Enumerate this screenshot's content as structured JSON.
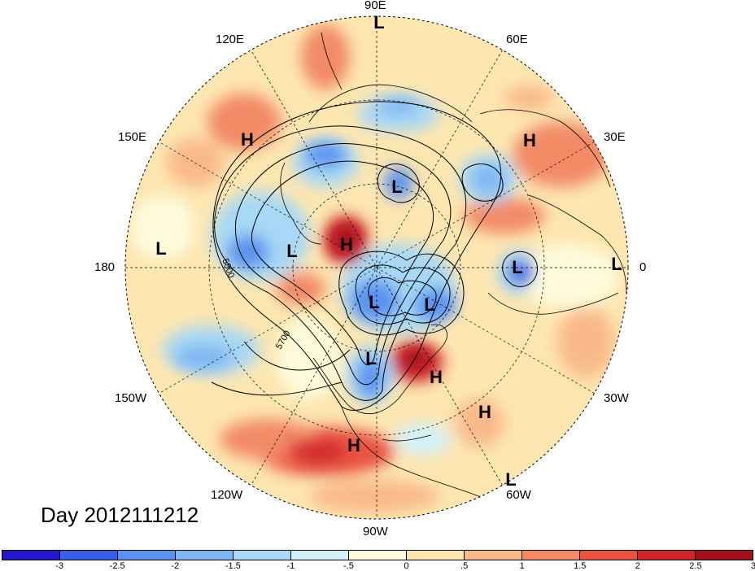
{
  "day_label": "Day 2012111212",
  "lon_labels": [
    {
      "id": "90e",
      "text": "90E"
    },
    {
      "id": "60e",
      "text": "60E"
    },
    {
      "id": "30e",
      "text": "30E"
    },
    {
      "id": "0",
      "text": "0"
    },
    {
      "id": "30w",
      "text": "30W"
    },
    {
      "id": "60w",
      "text": "60W"
    },
    {
      "id": "90w",
      "text": "90W"
    },
    {
      "id": "120w",
      "text": "120W"
    },
    {
      "id": "150w",
      "text": "150W"
    },
    {
      "id": "180",
      "text": "180"
    },
    {
      "id": "150e",
      "text": "150E"
    },
    {
      "id": "120e",
      "text": "120E"
    }
  ],
  "contour_labels": [
    "5800",
    "5700"
  ],
  "pressure_centers": [
    {
      "type": "L"
    },
    {
      "type": "H"
    },
    {
      "type": "L"
    },
    {
      "type": "H"
    },
    {
      "type": "L"
    },
    {
      "type": "L"
    },
    {
      "type": "H"
    },
    {
      "type": "L"
    },
    {
      "type": "L"
    },
    {
      "type": "L"
    },
    {
      "type": "L"
    },
    {
      "type": "H"
    },
    {
      "type": "H"
    },
    {
      "type": "H"
    },
    {
      "type": "L"
    },
    {
      "type": "L"
    }
  ],
  "colorbar": {
    "colors": [
      "#2419c9",
      "#3a5ee6",
      "#5a92ee",
      "#7fb6f2",
      "#a7d8f5",
      "#d3f0f9",
      "#fdfbdb",
      "#fde6b0",
      "#f9b98a",
      "#f28a66",
      "#e85443",
      "#d0262a",
      "#a0111c"
    ],
    "ticks": [
      "-3",
      "-2.5",
      "-2",
      "-1.5",
      "-1",
      "-.5",
      "0",
      ".5",
      "1",
      "1.5",
      "2",
      "2.5",
      "3"
    ]
  }
}
